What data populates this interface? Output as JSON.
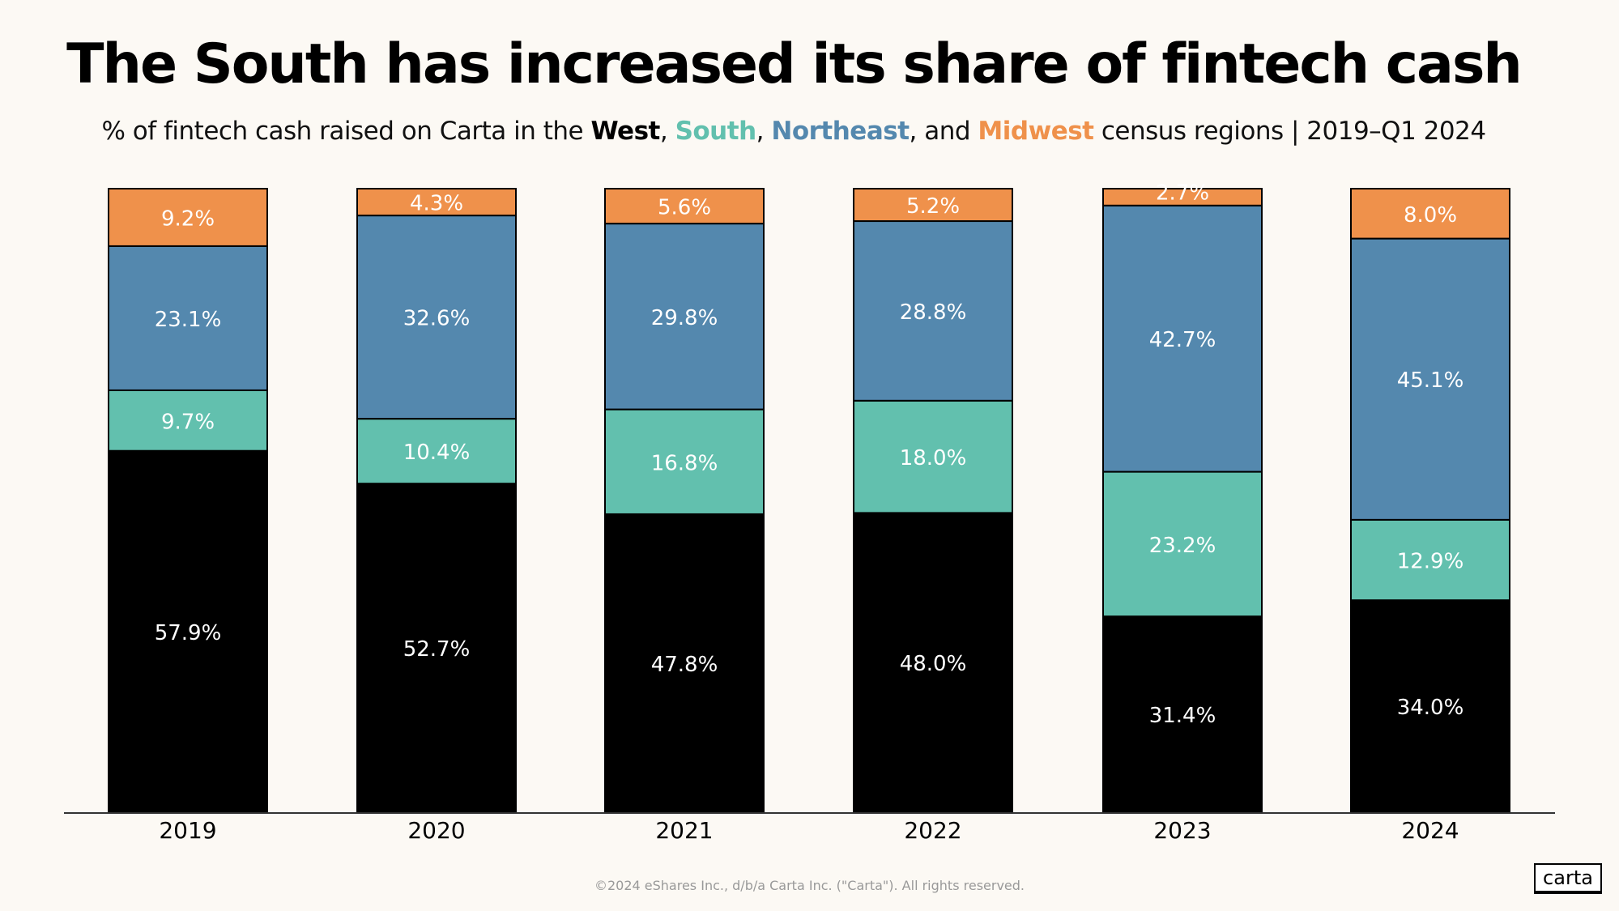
{
  "title": "The South has increased its share of fintech cash",
  "subtitle": {
    "prefix": "% of fintech cash raised on Carta in the ",
    "west": "West",
    "sep1": ", ",
    "south": "South",
    "sep2": ", ",
    "northeast": "Northeast",
    "sep3": ", and ",
    "midwest": "Midwest",
    "suffix": " census regions  | 2019–Q1 2024"
  },
  "footer": "©2024 eShares Inc., d/b/a Carta Inc. (\"Carta\"). All rights reserved.",
  "logo": "carta",
  "colors": {
    "West": "#000000",
    "South": "#62c0ae",
    "Northeast": "#5488ae",
    "Midwest": "#ef914b",
    "background": "#fcf9f4"
  },
  "chart_data": {
    "type": "bar",
    "stacked": true,
    "categories": [
      "2019",
      "2020",
      "2021",
      "2022",
      "2023",
      "2024"
    ],
    "series": [
      {
        "name": "West",
        "values": [
          57.9,
          52.7,
          47.8,
          48.0,
          31.4,
          34.0
        ]
      },
      {
        "name": "South",
        "values": [
          9.7,
          10.4,
          16.8,
          18.0,
          23.2,
          12.9
        ]
      },
      {
        "name": "Northeast",
        "values": [
          23.1,
          32.6,
          29.8,
          28.8,
          42.7,
          45.1
        ]
      },
      {
        "name": "Midwest",
        "values": [
          9.2,
          4.3,
          5.6,
          5.2,
          2.7,
          8.0
        ]
      }
    ],
    "value_format": "{v}%",
    "ylim": [
      0,
      100
    ],
    "grid": false,
    "legend": "in subtitle"
  }
}
